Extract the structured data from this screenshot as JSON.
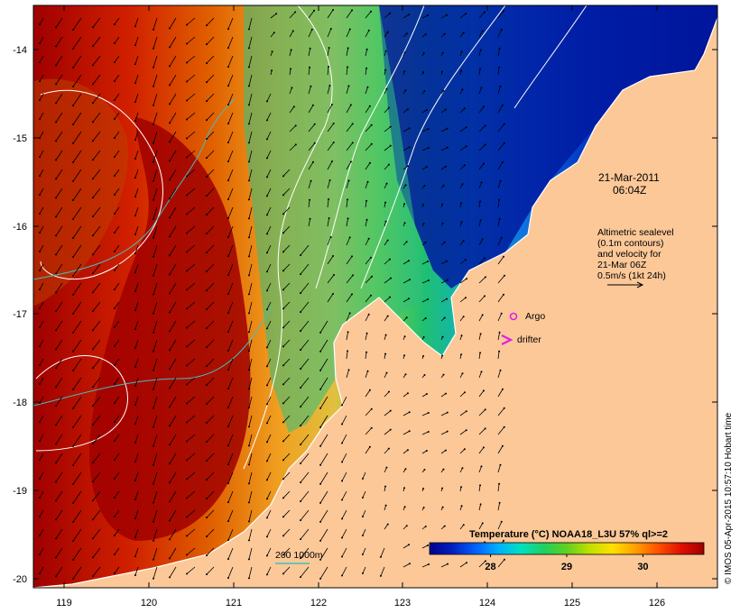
{
  "map": {
    "lon_range": [
      118.6,
      126.7
    ],
    "lat_range": [
      -20.1,
      -13.55
    ],
    "lon_ticks": [
      "119",
      "120",
      "121",
      "122",
      "123",
      "124",
      "125",
      "126"
    ],
    "lat_ticks": [
      "-14",
      "-15",
      "-16",
      "-17",
      "-18",
      "-19",
      "-20"
    ],
    "land_color": "#fcc898",
    "coastline_color": "#ffffff"
  },
  "timestamp": {
    "date": "21-Mar-2011",
    "time": "06:04Z"
  },
  "altimetry_note": {
    "line1": "Altimetric sealevel",
    "line2": "(0.1m contours)",
    "line3": "and velocity for",
    "line4": "21-Mar 06Z",
    "line5": "0.5m/s (1kt 24h)"
  },
  "legend": {
    "argo_label": "Argo",
    "argo_color": "#e020e0",
    "drifter_label": "drifter",
    "drifter_color": "#e020e0"
  },
  "isobath": {
    "label": "200  1000m",
    "color": "#40c0c0"
  },
  "colorbar": {
    "title": "Temperature (°C) NOAA18_L3U 57% ql>=2",
    "ticks": [
      "28",
      "29",
      "30"
    ],
    "tick_values": [
      28,
      29,
      30
    ],
    "range": [
      27.2,
      30.8
    ],
    "stops": [
      "#000090",
      "#0020c0",
      "#0060ff",
      "#00b0ff",
      "#00e0c0",
      "#20d060",
      "#60d020",
      "#c0e000",
      "#ffe000",
      "#ffa000",
      "#ff5000",
      "#e01000",
      "#a00000"
    ]
  },
  "credit": "© IMOS 05-Apr-2015 10:57:10 Hobart time"
}
